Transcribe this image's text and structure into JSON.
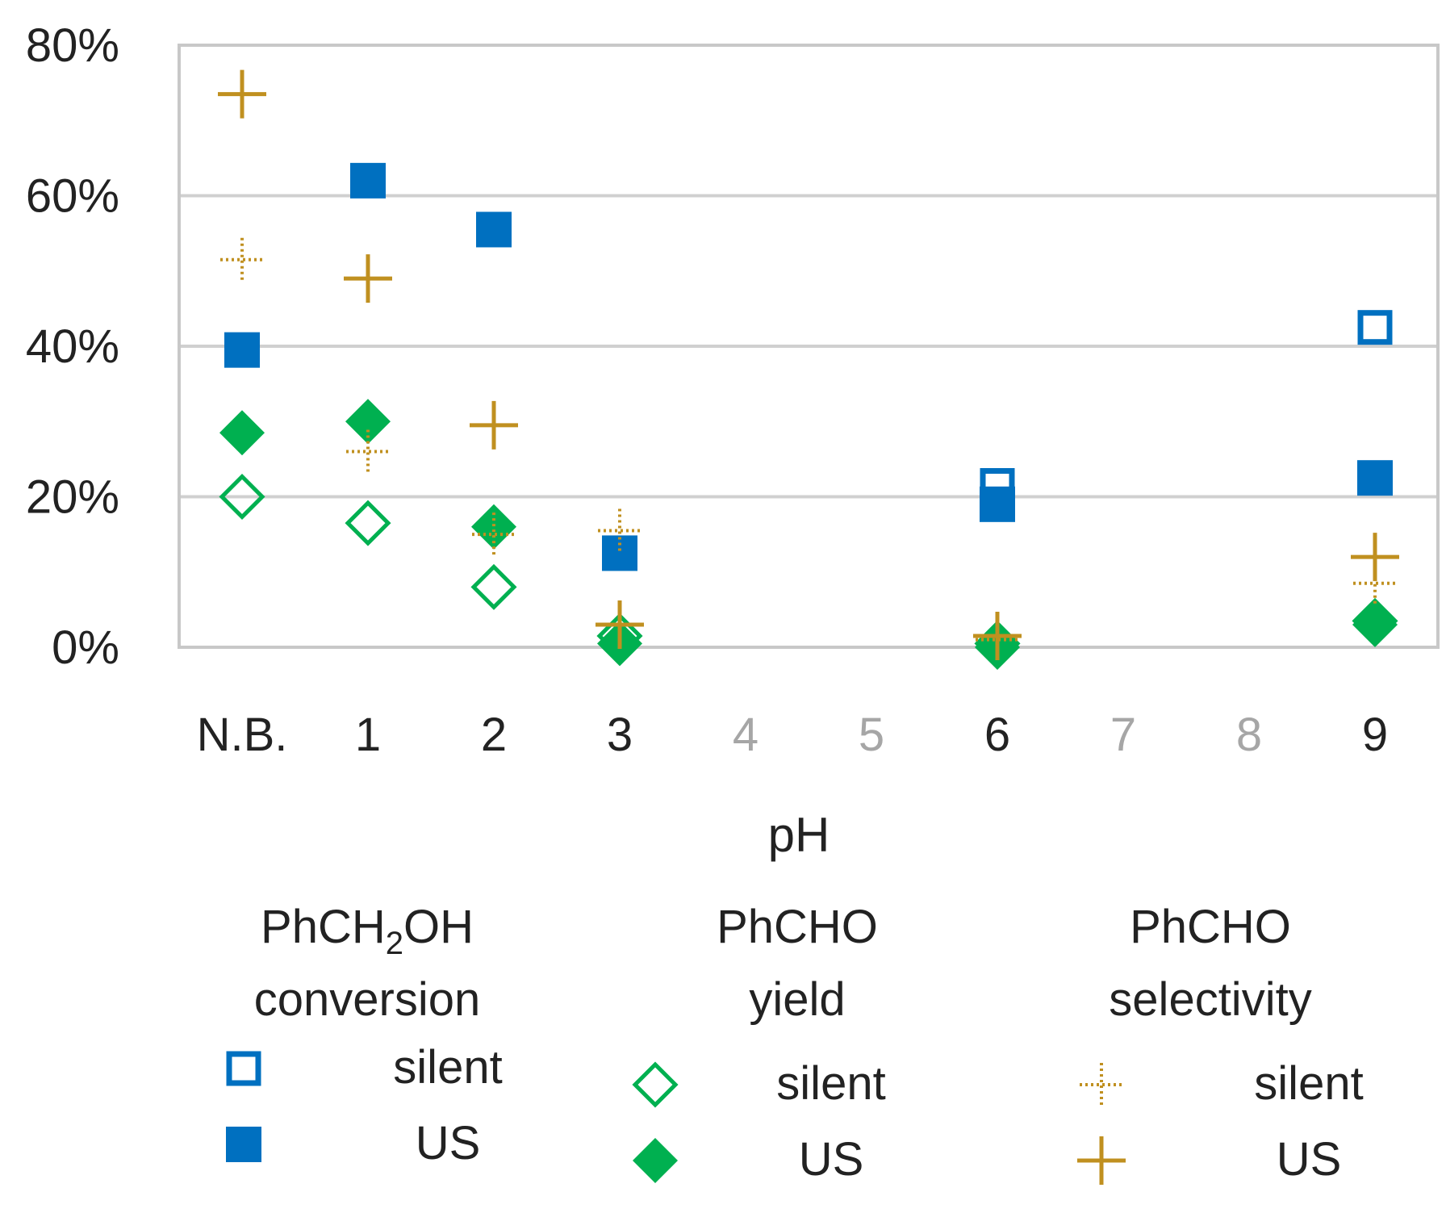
{
  "chart_data": {
    "type": "scatter",
    "title": "",
    "xlabel": "pH",
    "ylabel": "",
    "categories": [
      "N.B.",
      "1",
      "2",
      "3",
      "4",
      "5",
      "6",
      "7",
      "8",
      "9"
    ],
    "categories_muted": [
      false,
      false,
      false,
      false,
      true,
      true,
      false,
      true,
      true,
      false
    ],
    "y_tick_labels": [
      "0%",
      "20%",
      "40%",
      "60%",
      "80%"
    ],
    "y_ticks": [
      0,
      20,
      40,
      60,
      80
    ],
    "ylim": [
      0,
      80
    ],
    "grid": true,
    "legend_position": "bottom",
    "legend_groups": [
      {
        "title": "PhCH",
        "title_sub": "2",
        "title_tail": "OH",
        "title_line2": "conversion",
        "silent_label": "silent",
        "us_label": "US"
      },
      {
        "title": "PhCHO",
        "title_sub": "",
        "title_tail": "",
        "title_line2": "yield",
        "silent_label": "silent",
        "us_label": "US"
      },
      {
        "title": "PhCHO",
        "title_sub": "",
        "title_tail": "",
        "title_line2": "selectivity",
        "silent_label": "silent",
        "us_label": "US"
      }
    ],
    "series": [
      {
        "name": "PhCH2OH conversion silent",
        "marker": "square-open",
        "color": "#0070c0",
        "values": [
          null,
          null,
          null,
          null,
          null,
          null,
          21.5,
          null,
          null,
          42.5
        ]
      },
      {
        "name": "PhCH2OH conversion US",
        "marker": "square",
        "color": "#0070c0",
        "values": [
          39.5,
          62,
          55.5,
          12.5,
          null,
          null,
          19,
          null,
          null,
          22.5
        ]
      },
      {
        "name": "PhCHO yield silent",
        "marker": "diamond-open",
        "color": "#00b050",
        "values": [
          20,
          16.5,
          8,
          1.5,
          null,
          null,
          0.5,
          null,
          null,
          3.5
        ]
      },
      {
        "name": "PhCHO yield US",
        "marker": "diamond",
        "color": "#00b050",
        "values": [
          28.5,
          30,
          16,
          0.5,
          null,
          null,
          0,
          null,
          null,
          3
        ]
      },
      {
        "name": "PhCHO selectivity silent",
        "marker": "plus-dotted",
        "color": "#c09020",
        "values": [
          51.5,
          26,
          15,
          15.5,
          null,
          null,
          1,
          null,
          null,
          8.5
        ]
      },
      {
        "name": "PhCHO selectivity US",
        "marker": "plus",
        "color": "#c09020",
        "values": [
          73.5,
          49,
          29.5,
          3,
          null,
          null,
          1.5,
          null,
          null,
          12
        ]
      }
    ]
  }
}
